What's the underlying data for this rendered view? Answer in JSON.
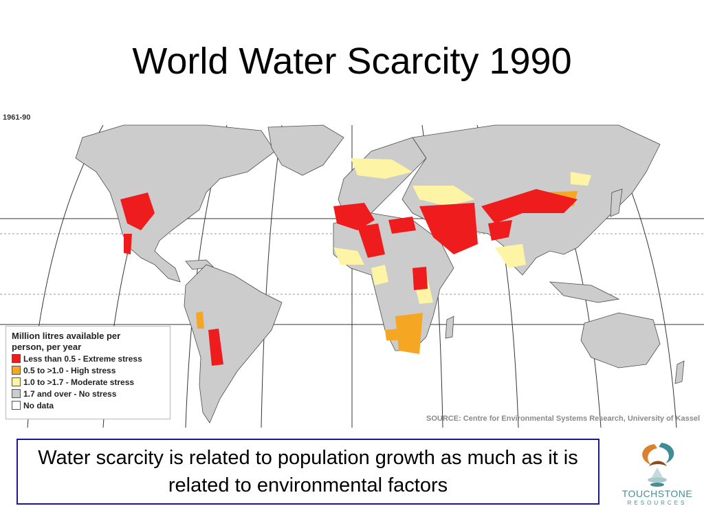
{
  "slide": {
    "title": "World Water Scarcity 1990"
  },
  "map": {
    "period_label": "1961-90",
    "projection": "world-equal-area",
    "colors": {
      "ocean": "#ffffff",
      "land": "#cccccc",
      "border": "#4a4a4a",
      "graticule": "#333333"
    },
    "legend": {
      "title": "Million litres available per person, per year",
      "items": [
        {
          "label": "Less than 0.5 - Extreme stress",
          "color": "#ee1c1c"
        },
        {
          "label": "0.5 to >1.0 - High stress",
          "color": "#f5a623"
        },
        {
          "label": "1.0 to >1.7 - Moderate stress",
          "color": "#fdf5a5"
        },
        {
          "label": "1.7 and over - No stress",
          "color": "#cccccc"
        },
        {
          "label": "No data",
          "color": "#ffffff"
        }
      ]
    },
    "source": "SOURCE: Centre for Environmental Systems Research, University of Kassel"
  },
  "caption": "Water scarcity is related to population growth as much as it is related to environmental factors",
  "logo": {
    "name": "TOUCHSTONE",
    "sub": "RESOURCES"
  }
}
